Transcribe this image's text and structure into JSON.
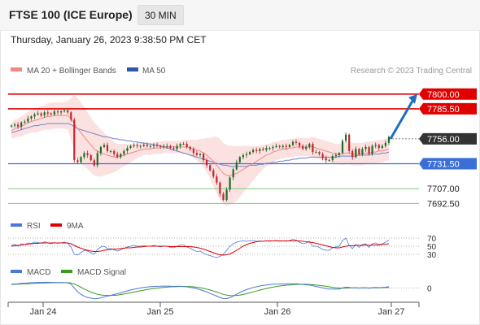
{
  "header": {
    "instrument": "FTSE 100 (ICE Europe)",
    "timeframe": "30 MIN",
    "datetime": "Thursday, January 26, 2023 9:38:50 PM CET"
  },
  "legend": {
    "ma20_bb": "MA 20 + Bollinger Bands",
    "ma50": "MA 50",
    "credit": "Research © 2023 Trading Central",
    "rsi": "RSI",
    "rsi_ma": "9MA",
    "macd": "MACD",
    "macd_signal": "MACD Signal"
  },
  "colors": {
    "resistance": "#e00000",
    "pivot": "#3a6fd8",
    "support": "#7fc97f",
    "arrow": "#1f6fc0",
    "candle_up": "#1e6b26",
    "candle_down": "#c0262b",
    "band_fill": "#fbd7d7",
    "ma20": "#f08a8a",
    "ma50": "#6f86c9",
    "current_price_tag": "#333333"
  },
  "chart_data": {
    "type": "candlestick",
    "x_tick_labels": [
      "Jan 24",
      "Jan 25",
      "Jan 26",
      "Jan 27"
    ],
    "price_ylim": [
      7688,
      7807
    ],
    "current_price": 7756.0,
    "levels": [
      {
        "label": "7800.00",
        "value": 7800.0,
        "kind": "resistance"
      },
      {
        "label": "7785.50",
        "value": 7785.5,
        "kind": "resistance"
      },
      {
        "label": "7756.00",
        "value": 7756.0,
        "kind": "current"
      },
      {
        "label": "7731.50",
        "value": 7731.5,
        "kind": "pivot"
      },
      {
        "label": "7707.00",
        "value": 7707.0,
        "kind": "support"
      },
      {
        "label": "7692.50",
        "value": 7692.5,
        "kind": "support"
      }
    ],
    "projection": {
      "from": 7756.0,
      "to": 7800.0
    },
    "candles_close": [
      7769,
      7770,
      7768,
      7772,
      7773,
      7776,
      7778,
      7780,
      7781,
      7779,
      7782,
      7781,
      7780,
      7783,
      7782,
      7783,
      7784,
      7782,
      7775,
      7735,
      7733,
      7738,
      7742,
      7740,
      7735,
      7730,
      7742,
      7748,
      7750,
      7744,
      7744,
      7741,
      7738,
      7741,
      7744,
      7747,
      7749,
      7750,
      7749,
      7749,
      7750,
      7749,
      7749,
      7750,
      7749,
      7748,
      7749,
      7749,
      7747,
      7746,
      7749,
      7751,
      7751,
      7748,
      7746,
      7742,
      7740,
      7741,
      7735,
      7730,
      7725,
      7719,
      7713,
      7702,
      7696,
      7706,
      7718,
      7726,
      7733,
      7738,
      7740,
      7741,
      7743,
      7745,
      7744,
      7746,
      7745,
      7747,
      7747,
      7748,
      7749,
      7748,
      7749,
      7748,
      7750,
      7753,
      7752,
      7749,
      7746,
      7748,
      7751,
      7743,
      7743,
      7741,
      7737,
      7735,
      7735,
      7739,
      7740,
      7742,
      7754,
      7760,
      7744,
      7738,
      7746,
      7741,
      7746,
      7748,
      7741,
      7749,
      7750,
      7747,
      7749,
      7752,
      7758
    ],
    "ma20": [
      7764,
      7766,
      7767,
      7768,
      7770,
      7772,
      7773,
      7774,
      7775,
      7776,
      7777,
      7778,
      7778,
      7779,
      7779,
      7779,
      7779,
      7779,
      7776,
      7771,
      7766,
      7762,
      7758,
      7754,
      7750,
      7746,
      7744,
      7742,
      7741,
      7740,
      7739,
      7738,
      7738,
      7739,
      7740,
      7741,
      7742,
      7743,
      7744,
      7745,
      7746,
      7746,
      7746,
      7747,
      7747,
      7747,
      7748,
      7748,
      7748,
      7748,
      7748,
      7748,
      7748,
      7748,
      7747,
      7746,
      7745,
      7744,
      7742,
      7740,
      7737,
      7734,
      7730,
      7726,
      7722,
      7720,
      7720,
      7721,
      7722,
      7724,
      7726,
      7728,
      7730,
      7732,
      7734,
      7736,
      7738,
      7740,
      7741,
      7743,
      7744,
      7745,
      7746,
      7746,
      7747,
      7747,
      7748,
      7748,
      7748,
      7748,
      7748,
      7748,
      7747,
      7746,
      7745,
      7744,
      7743,
      7742,
      7741,
      7741,
      7741,
      7742,
      7742,
      7741,
      7741,
      7741,
      7741,
      7742,
      7742,
      7743,
      7743,
      7744,
      7744,
      7745,
      7746
    ],
    "ma50": [
      7762,
      7763,
      7764,
      7765,
      7766,
      7767,
      7768,
      7769,
      7769,
      7770,
      7770,
      7771,
      7771,
      7771,
      7771,
      7771,
      7771,
      7771,
      7770,
      7768,
      7766,
      7765,
      7764,
      7763,
      7762,
      7761,
      7760,
      7759,
      7758,
      7758,
      7757,
      7756,
      7756,
      7755,
      7755,
      7754,
      7754,
      7753,
      7753,
      7752,
      7752,
      7751,
      7751,
      7750,
      7750,
      7749,
      7748,
      7747,
      7746,
      7745,
      7744,
      7743,
      7742,
      7741,
      7740,
      7739,
      7738,
      7737,
      7736,
      7735,
      7734,
      7733,
      7732,
      7731,
      7730,
      7730,
      7729,
      7729,
      7729,
      7729,
      7729,
      7729,
      7730,
      7730,
      7730,
      7731,
      7731,
      7732,
      7732,
      7733,
      7733,
      7734,
      7734,
      7735,
      7735,
      7736,
      7736,
      7737,
      7737,
      7737,
      7738,
      7738,
      7738,
      7738,
      7738,
      7738,
      7738,
      7738,
      7738,
      7739,
      7739,
      7739,
      7739,
      7739,
      7739,
      7740,
      7740,
      7740,
      7740,
      7741,
      7741,
      7741,
      7742,
      7742,
      7743
    ],
    "bb_width": [
      8,
      9,
      9,
      10,
      10,
      11,
      11,
      12,
      12,
      12,
      12,
      13,
      13,
      13,
      13,
      13,
      13,
      14,
      20,
      28,
      30,
      30,
      29,
      28,
      27,
      26,
      25,
      23,
      21,
      19,
      17,
      15,
      13,
      12,
      11,
      10,
      9,
      8,
      7,
      7,
      6,
      6,
      6,
      6,
      6,
      6,
      6,
      6,
      6,
      6,
      6,
      6,
      7,
      7,
      8,
      9,
      10,
      12,
      14,
      17,
      20,
      24,
      28,
      30,
      30,
      30,
      29,
      28,
      27,
      25,
      23,
      21,
      19,
      17,
      15,
      13,
      12,
      11,
      10,
      10,
      9,
      9,
      9,
      9,
      9,
      9,
      9,
      9,
      9,
      9,
      9,
      10,
      10,
      10,
      10,
      10,
      10,
      10,
      10,
      10,
      11,
      11,
      11,
      11,
      11,
      11,
      11,
      11,
      11,
      11,
      11,
      11,
      11,
      11,
      11
    ],
    "rsi": {
      "levels": [
        70,
        50,
        30
      ],
      "ylim": [
        20,
        80
      ],
      "values": [
        52,
        55,
        50,
        56,
        54,
        58,
        57,
        60,
        59,
        57,
        61,
        58,
        56,
        59,
        57,
        58,
        60,
        57,
        48,
        30,
        28,
        34,
        40,
        38,
        34,
        30,
        42,
        48,
        50,
        44,
        44,
        41,
        38,
        41,
        45,
        48,
        50,
        52,
        50,
        50,
        52,
        50,
        50,
        52,
        50,
        48,
        50,
        50,
        47,
        46,
        50,
        53,
        53,
        48,
        45,
        40,
        37,
        38,
        33,
        29,
        27,
        24,
        22,
        25,
        30,
        40,
        50,
        56,
        60,
        62,
        63,
        62,
        63,
        64,
        62,
        63,
        62,
        63,
        62,
        63,
        64,
        62,
        63,
        62,
        64,
        67,
        65,
        60,
        56,
        58,
        62,
        50,
        50,
        47,
        42,
        40,
        40,
        46,
        48,
        50,
        64,
        70,
        52,
        44,
        54,
        47,
        54,
        56,
        47,
        56,
        58,
        54,
        56,
        60,
        65
      ],
      "ma9": [
        50,
        51,
        52,
        53,
        54,
        55,
        56,
        57,
        57,
        58,
        58,
        58,
        58,
        58,
        58,
        58,
        58,
        58,
        56,
        52,
        48,
        45,
        42,
        40,
        38,
        37,
        37,
        38,
        40,
        41,
        42,
        43,
        43,
        44,
        45,
        46,
        46,
        47,
        48,
        48,
        49,
        50,
        50,
        50,
        50,
        50,
        50,
        50,
        49,
        49,
        49,
        49,
        49,
        49,
        49,
        48,
        47,
        45,
        43,
        40,
        37,
        34,
        31,
        29,
        28,
        29,
        31,
        35,
        40,
        45,
        50,
        54,
        57,
        59,
        61,
        62,
        62,
        63,
        63,
        63,
        63,
        63,
        63,
        63,
        63,
        63,
        63,
        63,
        62,
        61,
        60,
        59,
        57,
        55,
        53,
        51,
        49,
        47,
        46,
        46,
        48,
        50,
        51,
        51,
        52,
        52,
        52,
        53,
        52,
        53,
        53,
        53,
        54,
        55,
        56
      ]
    },
    "macd": {
      "ylim": [
        -10,
        8
      ],
      "zero_label": "0",
      "values": [
        3.0,
        3.2,
        3.4,
        3.6,
        3.8,
        4.0,
        4.2,
        4.3,
        4.4,
        4.4,
        4.5,
        4.5,
        4.4,
        4.4,
        4.3,
        4.3,
        4.2,
        4.0,
        3.0,
        0.0,
        -3.0,
        -5.0,
        -6.5,
        -7.5,
        -8.0,
        -8.5,
        -8.3,
        -7.8,
        -7.0,
        -6.4,
        -5.8,
        -5.2,
        -4.5,
        -3.8,
        -3.0,
        -2.3,
        -1.6,
        -1.0,
        -0.5,
        0.0,
        0.4,
        0.8,
        1.0,
        1.2,
        1.3,
        1.4,
        1.5,
        1.5,
        1.4,
        1.3,
        1.3,
        1.3,
        1.2,
        0.9,
        0.5,
        0.0,
        -0.6,
        -1.3,
        -2.2,
        -3.2,
        -4.3,
        -5.4,
        -6.4,
        -7.5,
        -8.3,
        -8.4,
        -7.6,
        -6.4,
        -5.0,
        -3.6,
        -2.4,
        -1.3,
        -0.4,
        0.4,
        1.0,
        1.6,
        2.0,
        2.4,
        2.7,
        2.9,
        3.1,
        3.2,
        3.2,
        3.2,
        3.3,
        3.4,
        3.4,
        3.2,
        2.8,
        2.5,
        2.4,
        1.8,
        1.2,
        0.7,
        0.1,
        -0.4,
        -0.8,
        -0.9,
        -0.9,
        -0.8,
        0.0,
        0.6,
        0.4,
        0.0,
        0.2,
        -0.1,
        0.1,
        0.2,
        -0.2,
        0.2,
        0.4,
        0.3,
        0.4,
        0.6,
        1.0
      ],
      "signal": [
        2.8,
        2.9,
        3.0,
        3.2,
        3.3,
        3.4,
        3.6,
        3.7,
        3.8,
        3.9,
        4.0,
        4.1,
        4.1,
        4.2,
        4.2,
        4.2,
        4.2,
        4.2,
        4.0,
        3.2,
        2.0,
        0.6,
        -0.8,
        -2.0,
        -3.2,
        -4.2,
        -5.0,
        -5.5,
        -5.8,
        -5.9,
        -5.9,
        -5.8,
        -5.6,
        -5.2,
        -4.8,
        -4.3,
        -3.8,
        -3.2,
        -2.7,
        -2.2,
        -1.7,
        -1.2,
        -0.8,
        -0.4,
        -0.1,
        0.2,
        0.5,
        0.7,
        0.9,
        1.0,
        1.1,
        1.2,
        1.2,
        1.2,
        1.1,
        0.9,
        0.6,
        0.2,
        -0.3,
        -0.9,
        -1.6,
        -2.4,
        -3.2,
        -4.1,
        -5.0,
        -5.7,
        -6.0,
        -6.1,
        -5.9,
        -5.6,
        -5.1,
        -4.5,
        -3.8,
        -3.1,
        -2.4,
        -1.7,
        -1.0,
        -0.4,
        0.2,
        0.7,
        1.2,
        1.6,
        1.9,
        2.2,
        2.4,
        2.6,
        2.8,
        2.9,
        2.9,
        2.9,
        2.8,
        2.6,
        2.4,
        2.1,
        1.7,
        1.3,
        0.9,
        0.5,
        0.2,
        0.0,
        -0.1,
        -0.1,
        0.0,
        0.0,
        0.0,
        0.0,
        0.0,
        0.0,
        0.0,
        0.0,
        0.1,
        0.1,
        0.2,
        0.3,
        0.4
      ]
    }
  }
}
